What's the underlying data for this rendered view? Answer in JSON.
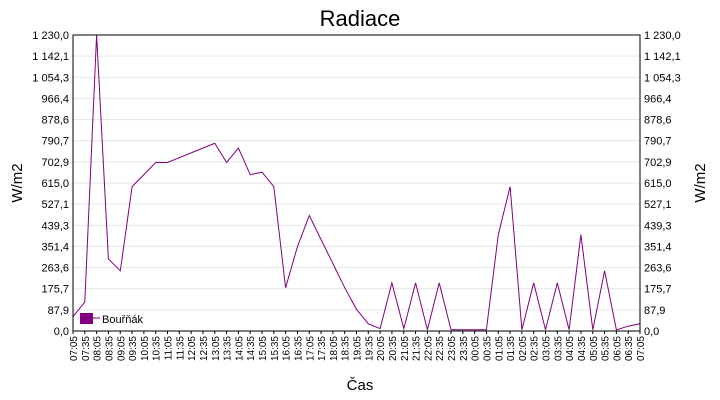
{
  "chart_data": {
    "type": "line",
    "title": "Radiace",
    "xlabel": "Čas",
    "ylabel_left": "W/m2",
    "ylabel_right": "W/m2",
    "ylim": [
      0,
      1230
    ],
    "yticks": [
      "0,0",
      "87,9",
      "175,7",
      "263,6",
      "351,4",
      "439,3",
      "527,1",
      "615,0",
      "702,9",
      "790,7",
      "878,6",
      "966,4",
      "1 054,3",
      "1 142,1",
      "1 230,0"
    ],
    "xticks": [
      "07:05",
      "07:35",
      "08:05",
      "08:35",
      "09:05",
      "09:35",
      "10:05",
      "10:35",
      "11:05",
      "11:35",
      "12:05",
      "12:35",
      "13:05",
      "13:35",
      "14:05",
      "14:35",
      "15:05",
      "15:35",
      "16:05",
      "16:35",
      "17:05",
      "17:35",
      "18:05",
      "18:35",
      "19:05",
      "19:35",
      "20:05",
      "20:35",
      "21:05",
      "21:35",
      "22:05",
      "22:35",
      "23:05",
      "23:35",
      "00:05",
      "00:35",
      "01:05",
      "01:35",
      "02:05",
      "02:35",
      "03:05",
      "03:35",
      "04:05",
      "04:35",
      "05:05",
      "05:35",
      "06:05",
      "06:35",
      "07:05"
    ],
    "grid": true,
    "legend_position": "bottom-left",
    "series": [
      {
        "name": "Bouřňák",
        "color": "#800080",
        "note_values": "approximate envelope sampled every 30 min (W/m2)",
        "x": [
          "07:05",
          "07:35",
          "08:05",
          "08:35",
          "09:05",
          "09:35",
          "10:05",
          "10:35",
          "11:05",
          "11:35",
          "12:05",
          "12:35",
          "13:05",
          "13:35",
          "14:05",
          "14:35",
          "15:05",
          "15:35",
          "16:05",
          "16:35",
          "17:05",
          "17:35",
          "18:05",
          "18:35",
          "19:05",
          "19:35",
          "20:05",
          "20:35",
          "21:05",
          "21:35",
          "22:05",
          "22:35",
          "23:05",
          "23:35",
          "00:05",
          "00:35",
          "01:05",
          "01:35",
          "02:05",
          "02:35",
          "03:05",
          "03:35",
          "04:05",
          "04:35",
          "05:05",
          "05:35",
          "06:05",
          "06:35",
          "07:05"
        ],
        "values": [
          60,
          120,
          1230,
          300,
          250,
          600,
          650,
          700,
          700,
          720,
          740,
          760,
          780,
          700,
          760,
          650,
          660,
          600,
          180,
          350,
          480,
          380,
          280,
          180,
          90,
          30,
          10,
          200,
          10,
          200,
          5,
          200,
          5,
          5,
          5,
          5,
          400,
          600,
          5,
          200,
          5,
          200,
          5,
          400,
          5,
          250,
          5,
          20,
          30
        ]
      }
    ]
  }
}
